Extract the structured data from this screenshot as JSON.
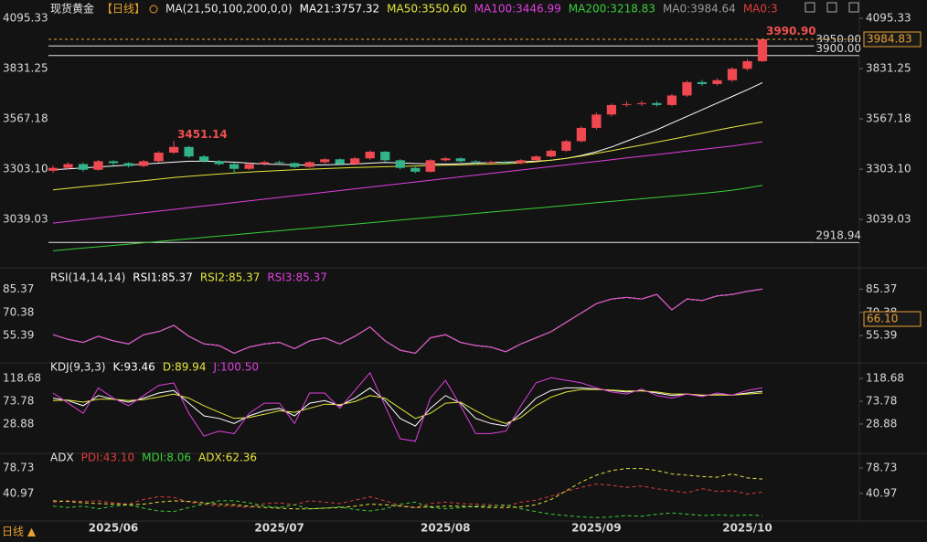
{
  "chart_data": [
    {
      "type": "candlestick",
      "title": "现货黄金",
      "subtitle": "【日线】",
      "indicator": "MA(21,50,100,200,0,0)",
      "categories": [
        null,
        null,
        null,
        null,
        "2025/06",
        null,
        null,
        null,
        null,
        null,
        null,
        null,
        null,
        null,
        null,
        "2025/07",
        null,
        null,
        null,
        null,
        null,
        null,
        null,
        null,
        null,
        null,
        "2025/08",
        null,
        null,
        null,
        null,
        null,
        null,
        null,
        null,
        null,
        "2025/09",
        null,
        null,
        null,
        null,
        null,
        null,
        null,
        null,
        null,
        "2025/10",
        null
      ],
      "open": [
        3295,
        3310,
        3330,
        3300,
        3345,
        3335,
        3320,
        3345,
        3390,
        3420,
        3370,
        3345,
        3330,
        3305,
        3330,
        3340,
        3335,
        3315,
        3340,
        3355,
        3330,
        3360,
        3395,
        3350,
        3310,
        3290,
        3350,
        3360,
        3345,
        3340,
        3340,
        3335,
        3350,
        3370,
        3400,
        3450,
        3520,
        3590,
        3640,
        3645,
        3650,
        3640,
        3690,
        3760,
        3750,
        3770,
        3830,
        3870
      ],
      "high": [
        3322,
        3340,
        3338,
        3352,
        3350,
        3340,
        3352,
        3398,
        3451.14,
        3425,
        3378,
        3352,
        3336,
        3338,
        3348,
        3348,
        3340,
        3345,
        3362,
        3360,
        3368,
        3402,
        3398,
        3356,
        3315,
        3356,
        3368,
        3365,
        3350,
        3348,
        3346,
        3356,
        3376,
        3408,
        3458,
        3528,
        3600,
        3648,
        3660,
        3662,
        3660,
        3698,
        3768,
        3772,
        3780,
        3838,
        3880,
        3990.9
      ],
      "low": [
        3285,
        3302,
        3290,
        3295,
        3322,
        3312,
        3314,
        3338,
        3382,
        3362,
        3338,
        3322,
        3280,
        3298,
        3322,
        3328,
        3308,
        3310,
        3332,
        3322,
        3325,
        3352,
        3342,
        3302,
        3282,
        3285,
        3342,
        3338,
        3332,
        3332,
        3328,
        3330,
        3345,
        3365,
        3394,
        3444,
        3512,
        3580,
        3630,
        3635,
        3632,
        3634,
        3682,
        3740,
        3742,
        3762,
        3820,
        3865
      ],
      "close": [
        3310,
        3330,
        3300,
        3345,
        3335,
        3320,
        3345,
        3390,
        3420,
        3370,
        3345,
        3330,
        3305,
        3330,
        3340,
        3335,
        3315,
        3340,
        3355,
        3330,
        3360,
        3395,
        3350,
        3310,
        3290,
        3350,
        3360,
        3345,
        3340,
        3340,
        3335,
        3350,
        3370,
        3400,
        3450,
        3520,
        3590,
        3640,
        3645,
        3650,
        3640,
        3690,
        3760,
        3750,
        3770,
        3830,
        3870,
        3984.83
      ],
      "up_color": "#f04850",
      "down_color": "#33b38a",
      "series": [
        {
          "name": "MA21:3757.32",
          "color": "#ffffff",
          "values": [
            3300,
            3305,
            3310,
            3315,
            3320,
            3325,
            3330,
            3335,
            3340,
            3345,
            3345,
            3343,
            3340,
            3335,
            3330,
            3328,
            3326,
            3325,
            3326,
            3328,
            3330,
            3335,
            3338,
            3336,
            3333,
            3330,
            3330,
            3332,
            3335,
            3338,
            3340,
            3342,
            3345,
            3350,
            3360,
            3375,
            3395,
            3420,
            3450,
            3480,
            3510,
            3545,
            3580,
            3615,
            3650,
            3685,
            3720,
            3757.32
          ]
        },
        {
          "name": "MA50:3550.60",
          "color": "#e6e63c",
          "values": [
            3195,
            3203,
            3211,
            3219,
            3227,
            3235,
            3243,
            3251,
            3259,
            3266,
            3272,
            3278,
            3283,
            3288,
            3292,
            3296,
            3300,
            3303,
            3306,
            3309,
            3312,
            3314,
            3316,
            3318,
            3320,
            3322,
            3324,
            3326,
            3328,
            3330,
            3332,
            3336,
            3342,
            3350,
            3360,
            3372,
            3386,
            3400,
            3415,
            3430,
            3445,
            3460,
            3476,
            3492,
            3508,
            3523,
            3538,
            3550.6
          ]
        },
        {
          "name": "MA100:3446.99",
          "color": "#e040e0",
          "values": [
            3020,
            3029,
            3038,
            3047,
            3056,
            3065,
            3074,
            3083,
            3092,
            3101,
            3110,
            3119,
            3128,
            3137,
            3146,
            3155,
            3164,
            3173,
            3182,
            3191,
            3200,
            3209,
            3218,
            3227,
            3236,
            3245,
            3254,
            3263,
            3272,
            3281,
            3290,
            3299,
            3308,
            3317,
            3326,
            3335,
            3344,
            3353,
            3362,
            3371,
            3380,
            3389,
            3398,
            3407,
            3416,
            3425,
            3436,
            3446.99
          ]
        },
        {
          "name": "MA200:3218.83",
          "color": "#3ad03a",
          "values": [
            2875,
            2882,
            2889,
            2896,
            2903,
            2910,
            2917,
            2924,
            2931,
            2938,
            2945,
            2952,
            2959,
            2966,
            2973,
            2980,
            2987,
            2994,
            3001,
            3008,
            3015,
            3022,
            3029,
            3036,
            3043,
            3050,
            3057,
            3064,
            3071,
            3078,
            3085,
            3092,
            3099,
            3106,
            3113,
            3120,
            3127,
            3134,
            3141,
            3148,
            3155,
            3162,
            3169,
            3176,
            3184,
            3193,
            3205,
            3218.83
          ]
        }
      ],
      "legend_extra": [
        {
          "name": "MA0:3984.64",
          "color": "#9a9a9a"
        },
        {
          "name": "MA0:3",
          "color": "#e03c3c"
        }
      ],
      "ylim": [
        2800,
        4124
      ],
      "yticks": [
        4095.33,
        3831.25,
        3567.18,
        {
          "value": 3303.1,
          "label": "3303.10"
        },
        3039.03
      ],
      "price_lines": [
        {
          "value": 3950,
          "label": "3950.00"
        },
        {
          "value": 3900,
          "label": "3900.00"
        },
        {
          "value": 2918.94,
          "label": "2918.94"
        }
      ],
      "last_price": {
        "value": 3984.83,
        "label": "3984.83",
        "color": "#e8a030"
      },
      "high_labels": [
        {
          "value": 3451.14,
          "label": "3451.14"
        },
        {
          "value": 3990.9,
          "label": "3990.90"
        }
      ]
    },
    {
      "type": "line",
      "title": "RSI(14,14,14)",
      "series": [
        {
          "name": "RSI1:85.37",
          "color": "#ffffff",
          "values": [
            56,
            53,
            51,
            55,
            52,
            50,
            56,
            58,
            62,
            55,
            50,
            49,
            44,
            48,
            50,
            51,
            47,
            52,
            54,
            50,
            55,
            61,
            52,
            46,
            44,
            54,
            56,
            51,
            49,
            48,
            45,
            50,
            54,
            58,
            64,
            70,
            76,
            79,
            80,
            79,
            82,
            72,
            79,
            78,
            81,
            82,
            84,
            85.37
          ]
        },
        {
          "name": "RSI2:85.37",
          "color": "#e6e63c",
          "values": [
            56,
            53,
            51,
            55,
            52,
            50,
            56,
            58,
            62,
            55,
            50,
            49,
            44,
            48,
            50,
            51,
            47,
            52,
            54,
            50,
            55,
            61,
            52,
            46,
            44,
            54,
            56,
            51,
            49,
            48,
            45,
            50,
            54,
            58,
            64,
            70,
            76,
            79,
            80,
            79,
            82,
            72,
            79,
            78,
            81,
            82,
            84,
            85.37
          ]
        },
        {
          "name": "RSI3:85.37",
          "color": "#e040e0",
          "values": [
            56,
            53,
            51,
            55,
            52,
            50,
            56,
            58,
            62,
            55,
            50,
            49,
            44,
            48,
            50,
            51,
            47,
            52,
            54,
            50,
            55,
            61,
            52,
            46,
            44,
            54,
            56,
            51,
            49,
            48,
            45,
            50,
            54,
            58,
            64,
            70,
            76,
            79,
            80,
            79,
            82,
            72,
            79,
            78,
            81,
            82,
            84,
            85.37
          ]
        }
      ],
      "ylim": [
        39,
        95
      ],
      "yticks": [
        85.37,
        70.38,
        55.39
      ],
      "marker_label": {
        "value": 66.1,
        "label": "66.10",
        "color": "#e8a030"
      }
    },
    {
      "type": "line",
      "title": "KDJ(9,3,3)",
      "series": [
        {
          "name": "K:93.46",
          "color": "#ffffff",
          "values": [
            80,
            75,
            65,
            85,
            78,
            72,
            80,
            90,
            95,
            70,
            45,
            40,
            30,
            45,
            55,
            60,
            45,
            70,
            75,
            65,
            80,
            100,
            75,
            40,
            25,
            60,
            85,
            70,
            40,
            30,
            25,
            50,
            80,
            95,
            100,
            100,
            98,
            95,
            92,
            95,
            90,
            85,
            88,
            85,
            87,
            86,
            90,
            93.46
          ]
        },
        {
          "name": "D:89.94",
          "color": "#e6e63c",
          "values": [
            75,
            76,
            72,
            78,
            78,
            75,
            77,
            82,
            88,
            80,
            65,
            52,
            40,
            42,
            48,
            55,
            52,
            60,
            68,
            67,
            73,
            85,
            80,
            60,
            40,
            50,
            70,
            72,
            55,
            40,
            30,
            42,
            65,
            82,
            92,
            97,
            97,
            96,
            94,
            94,
            92,
            88,
            88,
            86,
            86,
            86,
            88,
            89.94
          ]
        },
        {
          "name": "J:100.50",
          "color": "#e040e0",
          "values": [
            90,
            70,
            50,
            100,
            80,
            65,
            85,
            105,
            110,
            50,
            5,
            15,
            10,
            50,
            70,
            70,
            30,
            90,
            90,
            60,
            95,
            130,
            65,
            0,
            -5,
            80,
            115,
            65,
            10,
            10,
            15,
            65,
            110,
            120,
            115,
            110,
            100,
            92,
            88,
            98,
            85,
            80,
            88,
            83,
            90,
            86,
            95,
            100.5
          ]
        }
      ],
      "ylim": [
        -27,
        135
      ],
      "yticks": [
        118.68,
        73.78,
        28.88
      ]
    },
    {
      "type": "line",
      "title": "ADX",
      "dashed": true,
      "series": [
        {
          "name": "PDI:43.10",
          "color": "#e03c3c",
          "values": [
            28,
            30,
            29,
            30,
            27,
            25,
            32,
            36,
            35,
            28,
            25,
            22,
            22,
            20,
            26,
            27,
            24,
            30,
            28,
            26,
            31,
            36,
            30,
            23,
            20,
            26,
            28,
            26,
            25,
            24,
            22,
            28,
            31,
            37,
            44,
            50,
            55,
            53,
            50,
            52,
            48,
            45,
            42,
            48,
            44,
            45,
            40,
            43.1
          ]
        },
        {
          "name": "MDI:8.06",
          "color": "#3ad03a",
          "values": [
            22,
            20,
            22,
            18,
            22,
            24,
            19,
            15,
            14,
            20,
            25,
            30,
            30,
            27,
            22,
            20,
            24,
            18,
            19,
            21,
            17,
            15,
            18,
            25,
            28,
            20,
            18,
            20,
            22,
            22,
            24,
            18,
            14,
            10,
            8,
            6,
            5,
            6,
            8,
            7,
            10,
            12,
            10,
            8,
            9,
            8,
            9,
            8.06
          ]
        },
        {
          "name": "ADX:62.36",
          "color": "#e6e63c",
          "values": [
            30,
            29,
            27,
            26,
            25,
            24,
            25,
            28,
            30,
            29,
            27,
            25,
            24,
            22,
            20,
            19,
            18,
            18,
            19,
            20,
            22,
            25,
            24,
            22,
            20,
            21,
            22,
            22,
            21,
            20,
            20,
            21,
            24,
            32,
            45,
            58,
            68,
            75,
            78,
            78,
            75,
            70,
            68,
            66,
            65,
            70,
            64,
            62.36
          ]
        }
      ],
      "ylim": [
        0,
        91
      ],
      "yticks": [
        78.73,
        40.97
      ]
    }
  ],
  "footer": "日线 ▲"
}
